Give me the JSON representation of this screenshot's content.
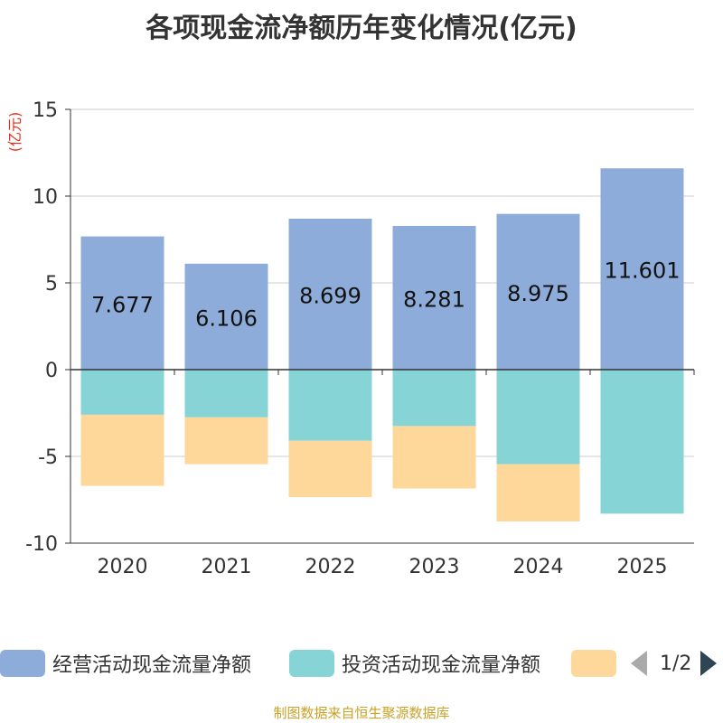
{
  "title": "各项现金流净额历年变化情况(亿元)",
  "source": "制图数据来自恒生聚源数据库",
  "legend": {
    "items": [
      {
        "label": "经营活动现金流量净额",
        "color": "#8eacd9"
      },
      {
        "label": "投资活动现金流量净额",
        "color": "#86d4d6"
      },
      {
        "label": "",
        "color": "#fdd89a"
      }
    ],
    "page": "1/2"
  },
  "chart_data": {
    "type": "bar",
    "stacked": true,
    "categories": [
      "2020",
      "2021",
      "2022",
      "2023",
      "2024",
      "2025"
    ],
    "ylabel": "(亿元)",
    "ylim": [
      -10,
      15
    ],
    "yticks": [
      -10,
      -5,
      0,
      5,
      10,
      15
    ],
    "grid": true,
    "series": [
      {
        "name": "经营活动现金流量净额",
        "color": "#8eacd9",
        "values": [
          7.677,
          6.106,
          8.699,
          8.281,
          8.975,
          11.601
        ],
        "labels": [
          "7.677",
          "6.106",
          "8.699",
          "8.281",
          "8.975",
          "11.601"
        ]
      },
      {
        "name": "投资活动现金流量净额",
        "color": "#86d4d6",
        "values": [
          -2.6,
          -2.75,
          -4.1,
          -3.25,
          -5.45,
          -8.3
        ]
      },
      {
        "name": "",
        "color": "#fdd89a",
        "values": [
          -4.1,
          -2.7,
          -3.25,
          -3.6,
          -3.3,
          0
        ]
      }
    ]
  }
}
